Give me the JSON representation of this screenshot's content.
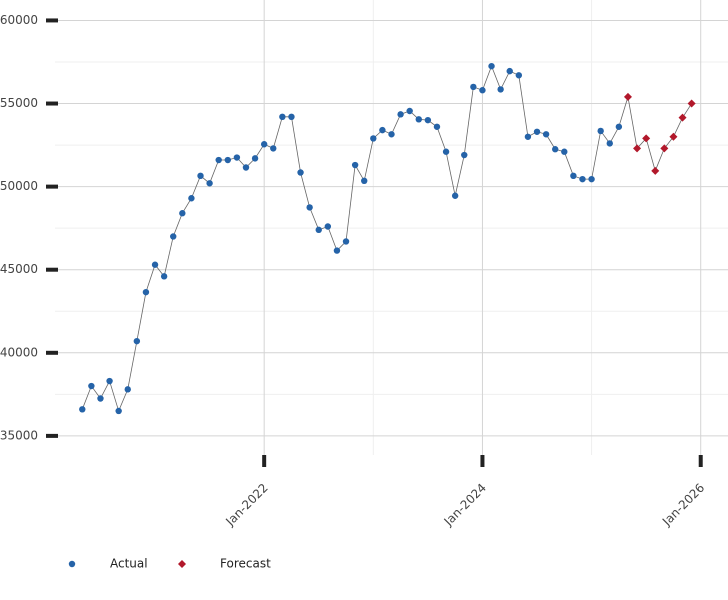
{
  "chart_data": {
    "type": "line",
    "series": [
      {
        "name": "Actual",
        "color": "#2563a8",
        "marker": "circle",
        "x": [
          "2020-05",
          "2020-06",
          "2020-07",
          "2020-08",
          "2020-09",
          "2020-10",
          "2020-11",
          "2020-12",
          "2021-01",
          "2021-02",
          "2021-03",
          "2021-04",
          "2021-05",
          "2021-06",
          "2021-07",
          "2021-08",
          "2021-09",
          "2021-10",
          "2021-11",
          "2021-12",
          "2022-01",
          "2022-02",
          "2022-03",
          "2022-04",
          "2022-05",
          "2022-06",
          "2022-07",
          "2022-08",
          "2022-09",
          "2022-10",
          "2022-11",
          "2022-12",
          "2023-01",
          "2023-02",
          "2023-03",
          "2023-04",
          "2023-05",
          "2023-06",
          "2023-07",
          "2023-08",
          "2023-09",
          "2023-10",
          "2023-11",
          "2023-12",
          "2024-01",
          "2024-02",
          "2024-03",
          "2024-04",
          "2024-05",
          "2024-06",
          "2024-07",
          "2024-08",
          "2024-09",
          "2024-10",
          "2024-11",
          "2024-12",
          "2025-01",
          "2025-02",
          "2025-03",
          "2025-04"
        ],
        "values": [
          36600,
          38000,
          37250,
          38300,
          36500,
          37800,
          40700,
          43650,
          45300,
          44600,
          47000,
          48400,
          49300,
          50650,
          50200,
          51600,
          51600,
          51750,
          51150,
          51700,
          52550,
          52300,
          54200,
          54200,
          50850,
          48750,
          47400,
          47600,
          46150,
          46700,
          51300,
          50350,
          52900,
          53400,
          53150,
          54350,
          54550,
          54050,
          54000,
          53600,
          52100,
          49450,
          51900,
          56000,
          55800,
          57250,
          55850,
          56950,
          56700,
          53000,
          53300,
          53150,
          52250,
          52100,
          50650,
          50450,
          50450,
          53350,
          52600,
          53600
        ]
      },
      {
        "name": "Forecast",
        "color": "#b2182b",
        "marker": "diamond",
        "x": [
          "2025-05",
          "2025-06",
          "2025-07",
          "2025-08",
          "2025-09",
          "2025-10",
          "2025-11",
          "2025-12"
        ],
        "values": [
          55400,
          52300,
          52900,
          50950,
          52300,
          53000,
          54150,
          55000
        ]
      }
    ],
    "xlim": [
      "2020-02",
      "2026-04"
    ],
    "xticks": [
      {
        "value": "2022-01",
        "label": "Jan-2022"
      },
      {
        "value": "2024-01",
        "label": "Jan-2024"
      },
      {
        "value": "2026-01",
        "label": "Jan-2026"
      }
    ],
    "ylim": [
      33850,
      61230
    ],
    "yticks": [
      35000,
      40000,
      45000,
      50000,
      55000,
      60000
    ],
    "grid": true,
    "legend": "bottom-left"
  }
}
